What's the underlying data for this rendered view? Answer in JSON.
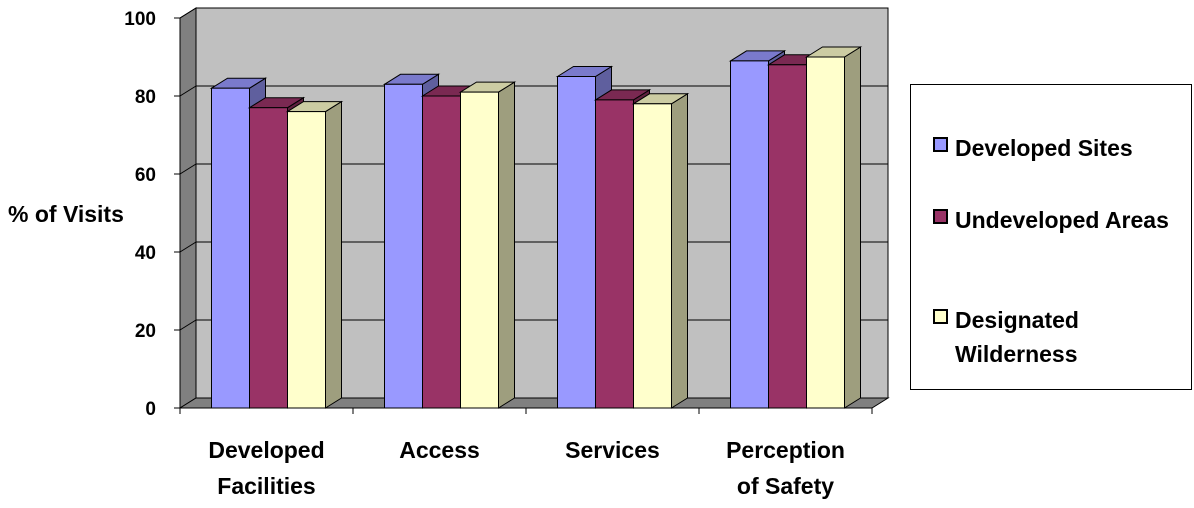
{
  "chart_data": {
    "type": "bar",
    "categories": [
      "Developed Facilities",
      "Access",
      "Services",
      "Perception of Safety"
    ],
    "series": [
      {
        "name": "Developed Sites",
        "color": "#9999ff",
        "values": [
          82,
          83,
          85,
          89
        ]
      },
      {
        "name": "Undeveloped Areas",
        "color": "#993366",
        "values": [
          77,
          80,
          79,
          88
        ]
      },
      {
        "name": "Designated Wilderness",
        "color": "#ffffcc",
        "values": [
          76,
          81,
          78,
          90
        ]
      }
    ],
    "yticks": [
      "0",
      "20",
      "40",
      "60",
      "80",
      "100"
    ],
    "ylim": [
      0,
      100
    ],
    "ylabel": "% of Visits",
    "xlabel": "",
    "title": "",
    "grid": true,
    "legend_position": "right",
    "style": "3d-clustered-column"
  }
}
